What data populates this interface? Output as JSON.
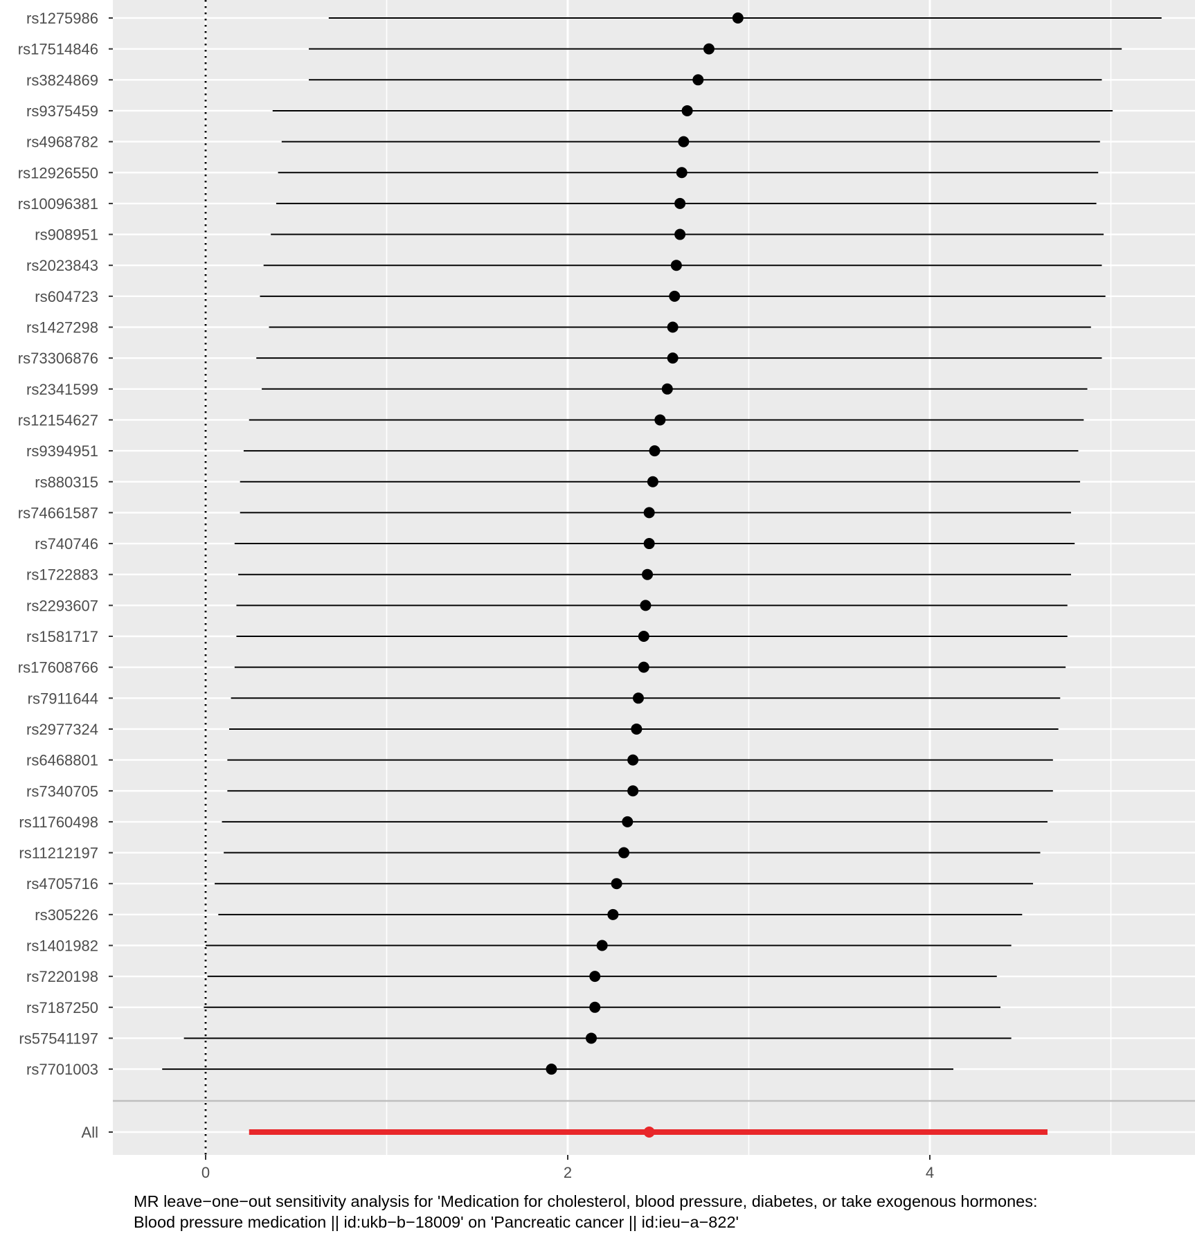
{
  "chart_data": {
    "type": "forest",
    "title": "",
    "xlabel_lines": [
      "MR leave−one−out sensitivity analysis for 'Medication for cholesterol, blood pressure, diabetes, or take exogenous hormones:",
      "Blood pressure medication || id:ukb−b−18009' on 'Pancreatic cancer || id:ieu−a−822'"
    ],
    "ylabel": "",
    "xlim": [
      -0.51,
      5.51
    ],
    "x_ticks": [
      0,
      2,
      4
    ],
    "x_tick_labels": [
      "0",
      "2",
      "4"
    ],
    "reference_line": 0,
    "grid": true,
    "background": "#ebebeb",
    "gridline_color": "#ffffff",
    "point_color": "#000000",
    "summary_color": "#e8272a",
    "separator_color": "#bebebe",
    "snps": [
      {
        "label": "rs1275986",
        "b": 2.94,
        "lo": 0.68,
        "hi": 5.28
      },
      {
        "label": "rs17514846",
        "b": 2.78,
        "lo": 0.57,
        "hi": 5.06
      },
      {
        "label": "rs3824869",
        "b": 2.72,
        "lo": 0.57,
        "hi": 4.95
      },
      {
        "label": "rs9375459",
        "b": 2.66,
        "lo": 0.37,
        "hi": 5.01
      },
      {
        "label": "rs4968782",
        "b": 2.64,
        "lo": 0.42,
        "hi": 4.94
      },
      {
        "label": "rs12926550",
        "b": 2.63,
        "lo": 0.4,
        "hi": 4.93
      },
      {
        "label": "rs10096381",
        "b": 2.62,
        "lo": 0.39,
        "hi": 4.92
      },
      {
        "label": "rs908951",
        "b": 2.62,
        "lo": 0.36,
        "hi": 4.96
      },
      {
        "label": "rs2023843",
        "b": 2.6,
        "lo": 0.32,
        "hi": 4.95
      },
      {
        "label": "rs604723",
        "b": 2.59,
        "lo": 0.3,
        "hi": 4.97
      },
      {
        "label": "rs1427298",
        "b": 2.58,
        "lo": 0.35,
        "hi": 4.89
      },
      {
        "label": "rs73306876",
        "b": 2.58,
        "lo": 0.28,
        "hi": 4.95
      },
      {
        "label": "rs2341599",
        "b": 2.55,
        "lo": 0.31,
        "hi": 4.87
      },
      {
        "label": "rs12154627",
        "b": 2.51,
        "lo": 0.24,
        "hi": 4.85
      },
      {
        "label": "rs9394951",
        "b": 2.48,
        "lo": 0.21,
        "hi": 4.82
      },
      {
        "label": "rs880315",
        "b": 2.47,
        "lo": 0.19,
        "hi": 4.83
      },
      {
        "label": "rs74661587",
        "b": 2.45,
        "lo": 0.19,
        "hi": 4.78
      },
      {
        "label": "rs740746",
        "b": 2.45,
        "lo": 0.16,
        "hi": 4.8
      },
      {
        "label": "rs1722883",
        "b": 2.44,
        "lo": 0.18,
        "hi": 4.78
      },
      {
        "label": "rs2293607",
        "b": 2.43,
        "lo": 0.17,
        "hi": 4.76
      },
      {
        "label": "rs1581717",
        "b": 2.42,
        "lo": 0.17,
        "hi": 4.76
      },
      {
        "label": "rs17608766",
        "b": 2.42,
        "lo": 0.16,
        "hi": 4.75
      },
      {
        "label": "rs7911644",
        "b": 2.39,
        "lo": 0.14,
        "hi": 4.72
      },
      {
        "label": "rs2977324",
        "b": 2.38,
        "lo": 0.13,
        "hi": 4.71
      },
      {
        "label": "rs6468801",
        "b": 2.36,
        "lo": 0.12,
        "hi": 4.68
      },
      {
        "label": "rs7340705",
        "b": 2.36,
        "lo": 0.12,
        "hi": 4.68
      },
      {
        "label": "rs11760498",
        "b": 2.33,
        "lo": 0.09,
        "hi": 4.65
      },
      {
        "label": "rs11212197",
        "b": 2.31,
        "lo": 0.1,
        "hi": 4.61
      },
      {
        "label": "rs4705716",
        "b": 2.27,
        "lo": 0.05,
        "hi": 4.57
      },
      {
        "label": "rs305226",
        "b": 2.25,
        "lo": 0.07,
        "hi": 4.51
      },
      {
        "label": "rs1401982",
        "b": 2.19,
        "lo": 0.0,
        "hi": 4.45
      },
      {
        "label": "rs7220198",
        "b": 2.15,
        "lo": 0.01,
        "hi": 4.37
      },
      {
        "label": "rs7187250",
        "b": 2.15,
        "lo": -0.01,
        "hi": 4.39
      },
      {
        "label": "rs57541197",
        "b": 2.13,
        "lo": -0.12,
        "hi": 4.45
      },
      {
        "label": "rs7701003",
        "b": 1.91,
        "lo": -0.24,
        "hi": 4.13
      }
    ],
    "summary": {
      "label": "All",
      "b": 2.45,
      "lo": 0.24,
      "hi": 4.65
    }
  }
}
